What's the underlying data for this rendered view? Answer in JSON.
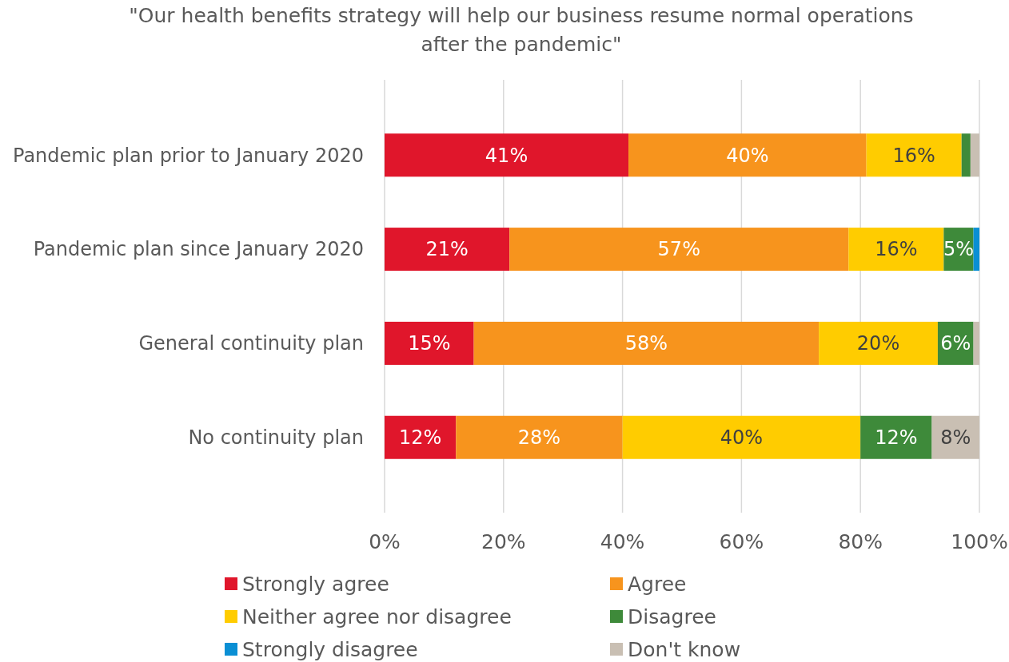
{
  "chart_data": {
    "type": "bar",
    "orientation": "horizontal",
    "stacked": true,
    "title": "\"Our health benefits strategy will help our business resume normal operations after the pandemic\"",
    "categories": [
      "Pandemic plan prior to January 2020",
      "Pandemic plan since January 2020",
      "General continuity plan",
      "No continuity plan"
    ],
    "series": [
      {
        "name": "Strongly agree",
        "color": "#e0162b",
        "values": [
          41,
          21,
          15,
          12
        ],
        "value_labels": [
          "41%",
          "21%",
          "15%",
          "12%"
        ]
      },
      {
        "name": "Agree",
        "color": "#f7941d",
        "values": [
          40,
          57,
          58,
          28
        ],
        "value_labels": [
          "40%",
          "57%",
          "58%",
          "28%"
        ]
      },
      {
        "name": "Neither agree nor disagree",
        "color": "#ffcc00",
        "values": [
          16,
          16,
          20,
          40
        ],
        "value_labels": [
          "16%",
          "16%",
          "20%",
          "40%"
        ]
      },
      {
        "name": "Disagree",
        "color": "#3e8a3a",
        "values": [
          1.5,
          5,
          6,
          12
        ],
        "value_labels": [
          null,
          "5%",
          "6%",
          "12%"
        ]
      },
      {
        "name": "Strongly disagree",
        "color": "#0a8fd4",
        "values": [
          0,
          1,
          0,
          0
        ],
        "value_labels": [
          null,
          null,
          null,
          null
        ]
      },
      {
        "name": "Don't know",
        "color": "#c9bfb3",
        "values": [
          1.5,
          0,
          1,
          8
        ],
        "value_labels": [
          null,
          null,
          null,
          "8%"
        ]
      }
    ],
    "xlim": [
      0,
      100
    ],
    "xticks": [
      {
        "value": 0,
        "label": "0%"
      },
      {
        "value": 20,
        "label": "20%"
      },
      {
        "value": 40,
        "label": "40%"
      },
      {
        "value": 60,
        "label": "60%"
      },
      {
        "value": 80,
        "label": "80%"
      },
      {
        "value": 100,
        "label": "100%"
      }
    ],
    "grid": "x",
    "legend": "bottom"
  }
}
